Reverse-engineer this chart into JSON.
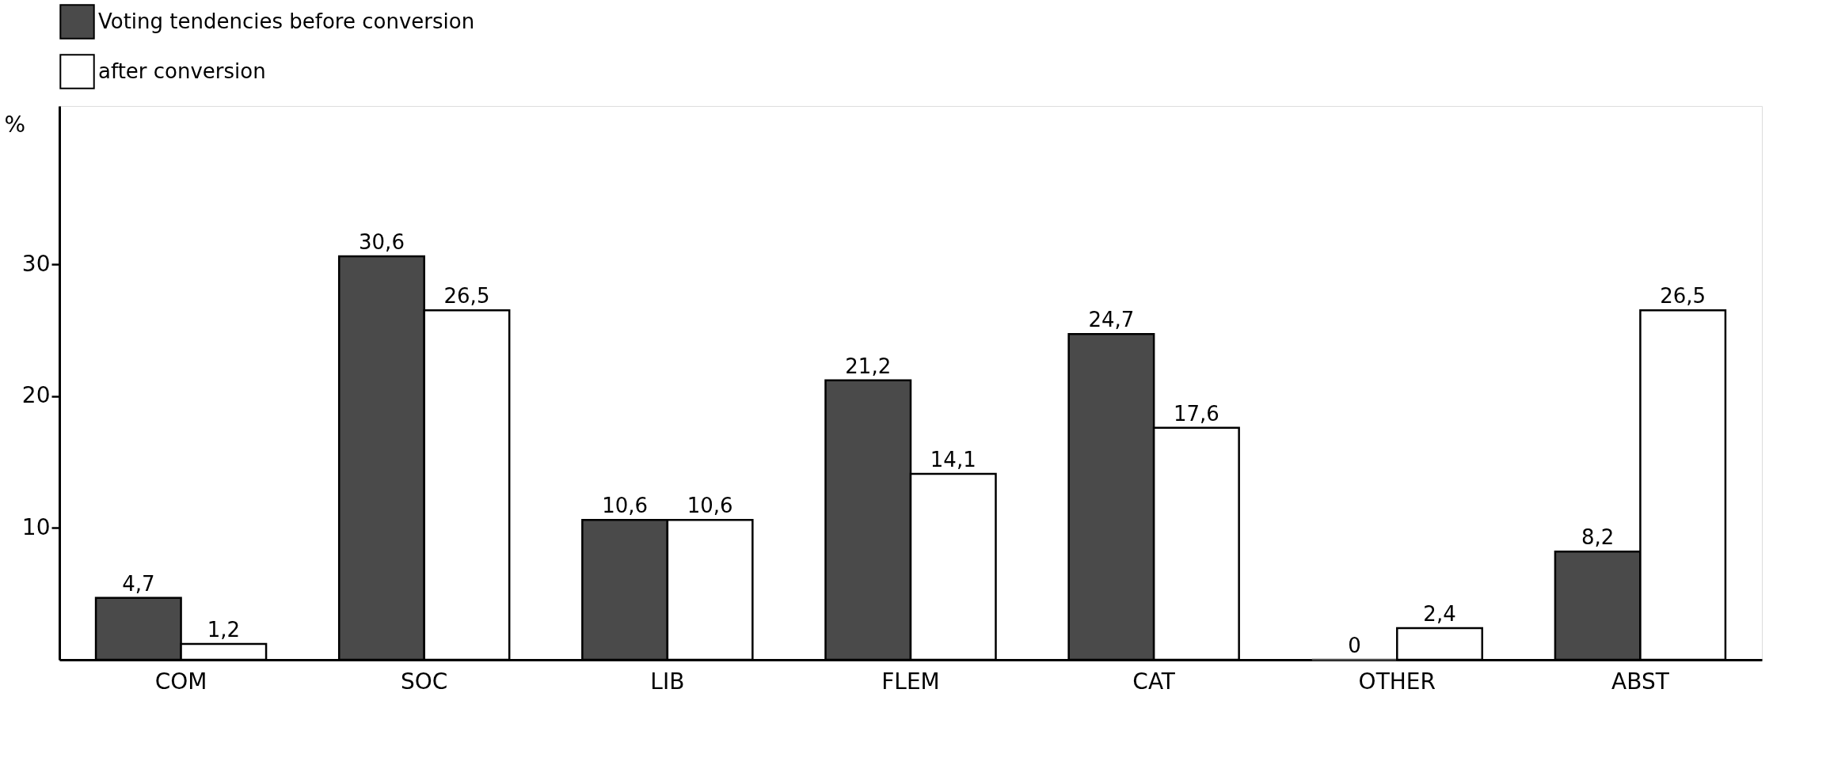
{
  "chart_data": {
    "type": "bar",
    "ylabel": "%",
    "categories": [
      "COM",
      "SOC",
      "LIB",
      "FLEM",
      "CAT",
      "OTHER",
      "ABST"
    ],
    "series": [
      {
        "name": "Voting tendencies before conversion",
        "color": "#4a4a4a",
        "values": [
          4.7,
          30.6,
          10.6,
          21.2,
          24.7,
          0,
          8.2
        ],
        "value_labels": [
          "4,7",
          "30,6",
          "10,6",
          "21,2",
          "24,7",
          "0",
          "8,2"
        ]
      },
      {
        "name": "after conversion",
        "color": "#ffffff",
        "values": [
          1.2,
          26.5,
          10.6,
          14.1,
          17.6,
          2.4,
          26.5
        ],
        "value_labels": [
          "1,2",
          "26,5",
          "10,6",
          "14,1",
          "17,6",
          "2,4",
          "26,5"
        ]
      }
    ],
    "ylim": [
      0,
      42
    ],
    "yticks": [
      10,
      20,
      30
    ],
    "grid": false,
    "legend": "top"
  }
}
